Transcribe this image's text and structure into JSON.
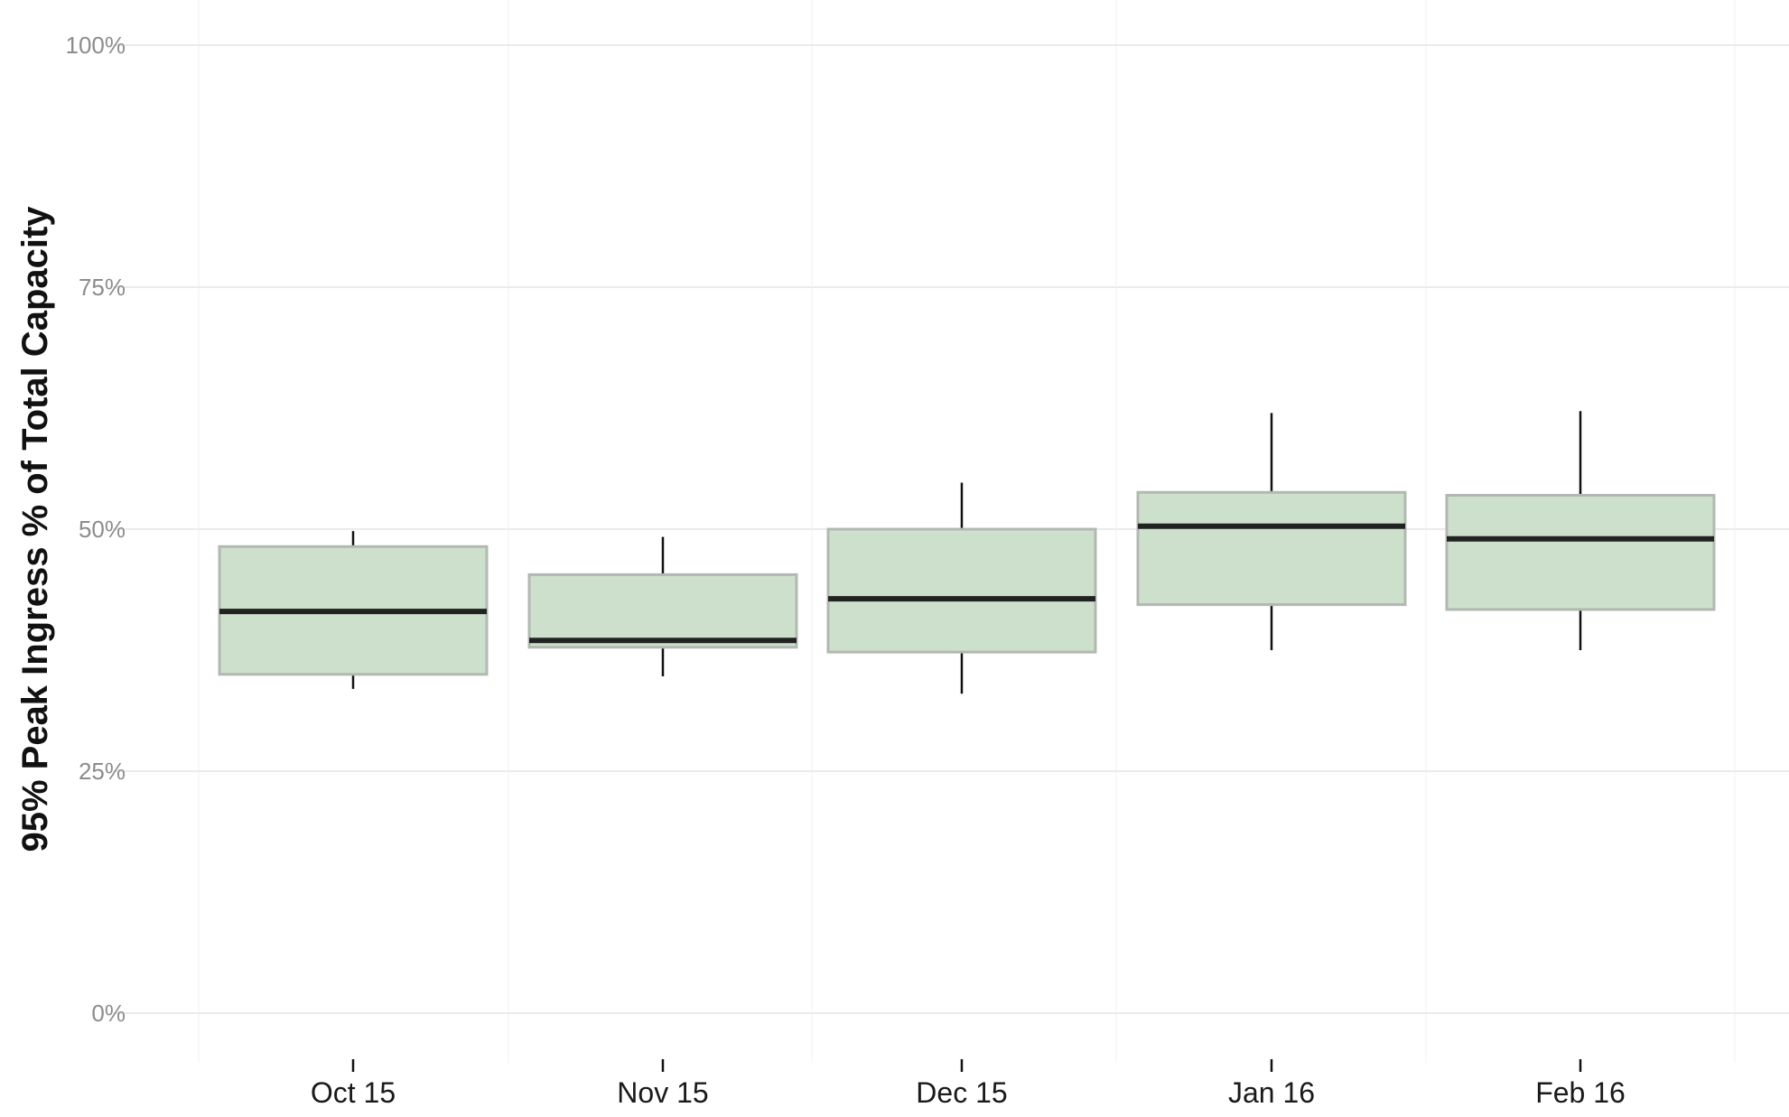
{
  "chart_data": {
    "type": "boxplot",
    "title": "",
    "xlabel": "",
    "ylabel": "95% Peak Ingress % of Total Capacity",
    "ylim": [
      0,
      100
    ],
    "y_ticks": [
      0,
      25,
      50,
      75,
      100
    ],
    "y_tick_labels": [
      "0%",
      "25%",
      "50%",
      "75%",
      "100%"
    ],
    "categories": [
      "Oct 15",
      "Nov 15",
      "Dec 15",
      "Jan 16",
      "Feb 16"
    ],
    "boxes": [
      {
        "category": "Oct 15",
        "whisker_low": 33.5,
        "q1": 35.0,
        "median": 41.5,
        "q3": 48.2,
        "whisker_high": 49.8
      },
      {
        "category": "Nov 15",
        "whisker_low": 34.8,
        "q1": 37.8,
        "median": 38.5,
        "q3": 45.3,
        "whisker_high": 49.2
      },
      {
        "category": "Dec 15",
        "whisker_low": 33.0,
        "q1": 37.3,
        "median": 42.8,
        "q3": 50.0,
        "whisker_high": 54.8
      },
      {
        "category": "Jan 16",
        "whisker_low": 37.5,
        "q1": 42.2,
        "median": 50.3,
        "q3": 53.8,
        "whisker_high": 62.0
      },
      {
        "category": "Feb 16",
        "whisker_low": 37.5,
        "q1": 41.7,
        "median": 49.0,
        "q3": 53.5,
        "whisker_high": 62.2
      }
    ],
    "grid": true,
    "legend": "none",
    "colors": {
      "box_fill": "#cce0cc",
      "box_stroke": "#b2b8b2",
      "median": "#222222",
      "whisker": "#111111",
      "grid_major": "#ebebeb",
      "grid_minor": "#f5f5f5"
    }
  }
}
